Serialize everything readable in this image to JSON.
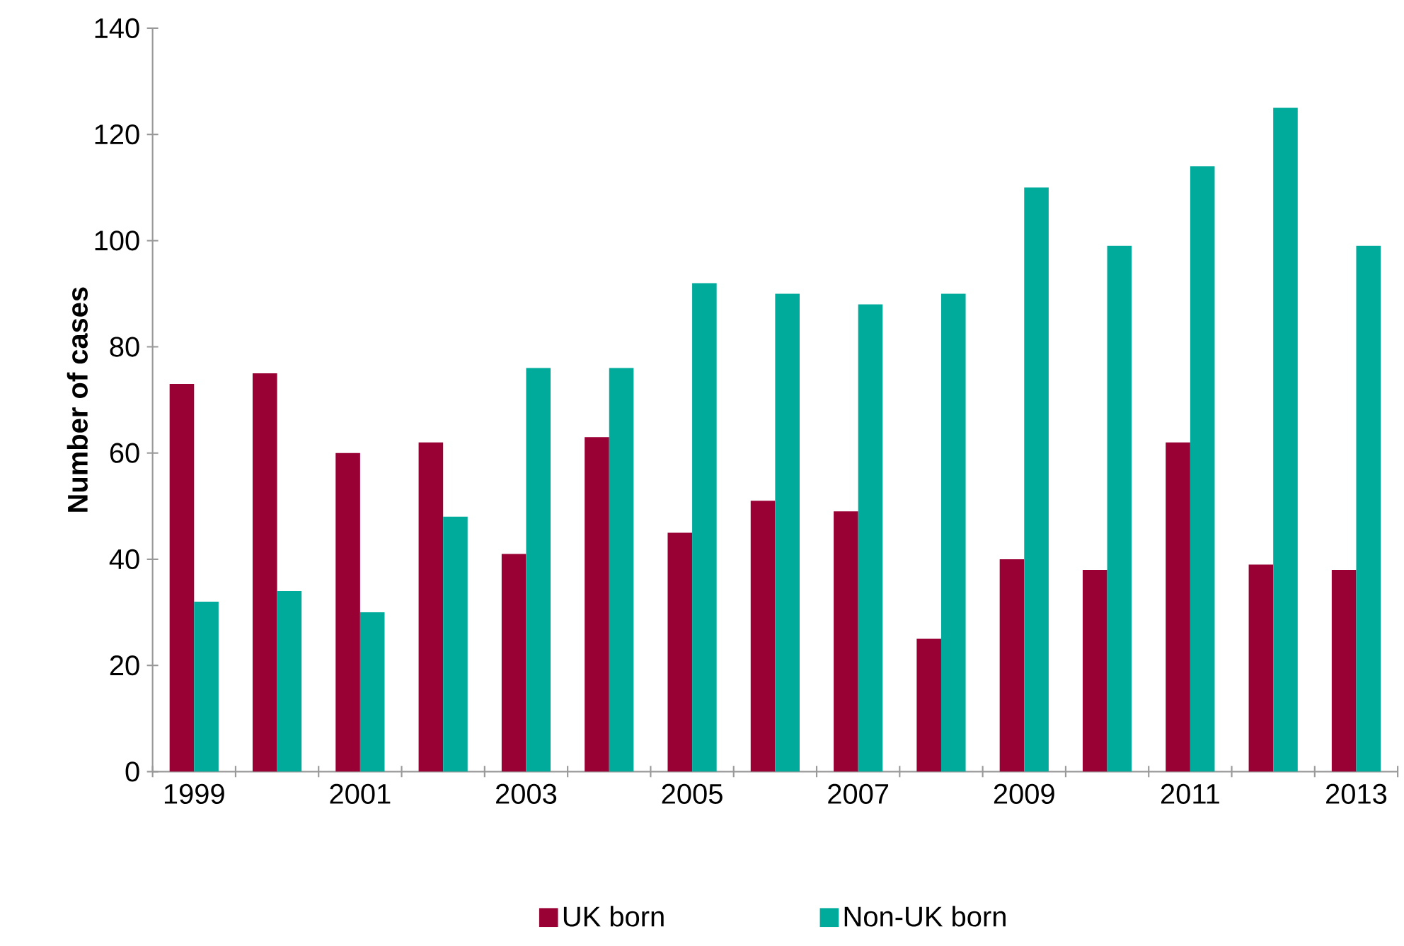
{
  "chart_data": {
    "type": "bar",
    "ylabel": "Number of cases",
    "categories": [
      "1999",
      null,
      "2001",
      null,
      "2003",
      null,
      "2005",
      null,
      "2007",
      null,
      "2009",
      null,
      "2011",
      null,
      "2013"
    ],
    "series": [
      {
        "name": "UK born",
        "color": "#990033",
        "values": [
          73,
          75,
          60,
          62,
          41,
          63,
          45,
          51,
          49,
          25,
          40,
          38,
          62,
          39,
          38
        ]
      },
      {
        "name": "Non-UK born",
        "color": "#00ab9c",
        "values": [
          32,
          34,
          30,
          48,
          76,
          76,
          92,
          90,
          88,
          90,
          110,
          99,
          114,
          125,
          99
        ]
      }
    ],
    "ylim": [
      0,
      140
    ],
    "yticks": [
      0,
      20,
      40,
      60,
      80,
      100,
      120,
      140
    ],
    "grid": false,
    "legend": "bottom"
  }
}
